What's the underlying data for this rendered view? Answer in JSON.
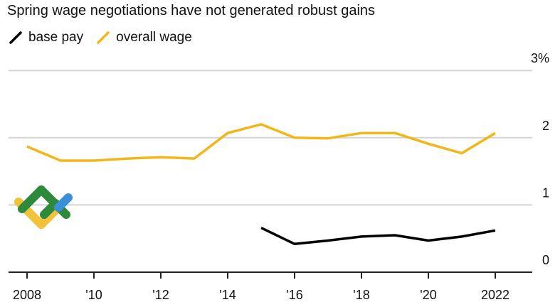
{
  "chart_data": {
    "type": "line",
    "title": "Spring wage negotiations have not generated robust gains",
    "xlabel": "",
    "ylabel": "",
    "xlim": [
      2007.9,
      2023
    ],
    "ylim": [
      0,
      3
    ],
    "x_ticks": [
      2008,
      2010,
      2012,
      2014,
      2016,
      2018,
      2020,
      2022
    ],
    "x_tick_labels": [
      "2008",
      "'10",
      "'12",
      "'14",
      "'16",
      "'18",
      "'20",
      "2022"
    ],
    "y_ticks": [
      0,
      1,
      2,
      3
    ],
    "y_tick_labels": [
      "0",
      "1",
      "2",
      "3%"
    ],
    "grid": true,
    "legend_position": "top-left",
    "series": [
      {
        "name": "base pay",
        "color": "#000000",
        "x": [
          2015,
          2016,
          2017,
          2018,
          2019,
          2020,
          2021,
          2022
        ],
        "values": [
          0.66,
          0.42,
          0.47,
          0.53,
          0.55,
          0.47,
          0.53,
          0.62
        ]
      },
      {
        "name": "overall wage",
        "color": "#f2b619",
        "x": [
          2008,
          2009,
          2010,
          2011,
          2012,
          2013,
          2014,
          2015,
          2016,
          2017,
          2018,
          2019,
          2020,
          2021,
          2022
        ],
        "values": [
          1.87,
          1.66,
          1.66,
          1.69,
          1.71,
          1.69,
          2.07,
          2.2,
          2.0,
          1.99,
          2.07,
          2.07,
          1.91,
          1.77,
          2.07
        ]
      }
    ]
  }
}
